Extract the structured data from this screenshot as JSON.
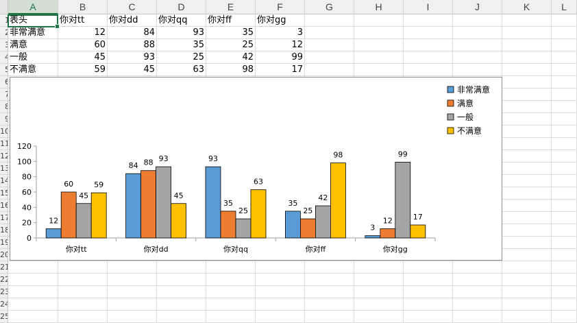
{
  "sheet": {
    "columns": [
      "A",
      "B",
      "C",
      "D",
      "E",
      "F",
      "G",
      "H",
      "I",
      "J",
      "K",
      "L"
    ],
    "selected_column": "A",
    "row_numbers": [
      "1",
      "2",
      "3",
      "4",
      "5",
      "6",
      "7",
      "8",
      "9",
      "10",
      "11",
      "12",
      "13",
      "14",
      "15",
      "16",
      "17",
      "18",
      "19",
      "20",
      "21",
      "22",
      "23",
      "24",
      "25"
    ],
    "header_row": [
      "表头",
      "你对tt",
      "你对dd",
      "你对qq",
      "你对ff",
      "你对gg"
    ],
    "data_rows": [
      {
        "label": "非常满意",
        "values": [
          12,
          84,
          93,
          35,
          3
        ]
      },
      {
        "label": "满意",
        "values": [
          60,
          88,
          35,
          25,
          12
        ]
      },
      {
        "label": "一般",
        "values": [
          45,
          93,
          25,
          42,
          99
        ]
      },
      {
        "label": "不满意",
        "values": [
          59,
          45,
          63,
          98,
          17
        ]
      }
    ]
  },
  "chart_data": {
    "type": "bar",
    "categories": [
      "你对tt",
      "你对dd",
      "你对qq",
      "你对ff",
      "你对gg"
    ],
    "series": [
      {
        "name": "非常满意",
        "color": "#5b9bd5",
        "values": [
          12,
          84,
          93,
          35,
          3
        ]
      },
      {
        "name": "满意",
        "color": "#ed7d31",
        "values": [
          60,
          88,
          35,
          25,
          12
        ]
      },
      {
        "name": "一般",
        "color": "#a5a5a5",
        "values": [
          45,
          93,
          25,
          42,
          99
        ]
      },
      {
        "name": "不满意",
        "color": "#ffc000",
        "values": [
          59,
          45,
          63,
          98,
          17
        ]
      }
    ],
    "yticks": [
      0,
      20,
      40,
      60,
      80,
      100,
      120
    ],
    "ylim": [
      0,
      120
    ],
    "data_labels": true,
    "legend": "top-right",
    "grid": false
  }
}
